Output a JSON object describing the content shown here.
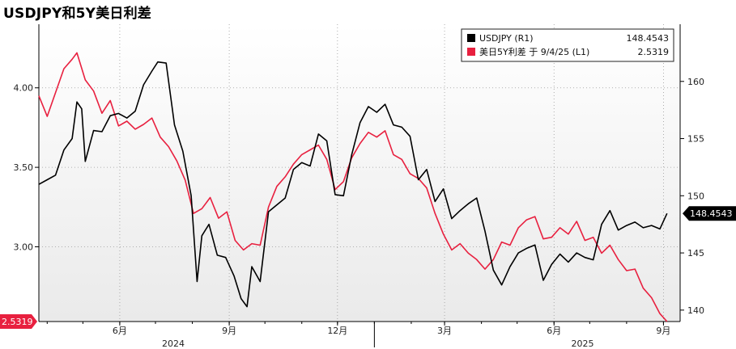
{
  "title": "USDJPY和5Y美日利差",
  "chart_data": {
    "type": "line",
    "title": "USDJPY和5Y美日利差",
    "x_axis": {
      "month_ticks": [
        {
          "label": "6月",
          "date": "2024-06-01"
        },
        {
          "label": "9月",
          "date": "2024-09-01"
        },
        {
          "label": "12月",
          "date": "2024-12-01"
        },
        {
          "label": "3月",
          "date": "2025-03-01"
        },
        {
          "label": "6月",
          "date": "2025-06-01"
        },
        {
          "label": "9月",
          "date": "2025-09-01"
        }
      ],
      "year_labels": [
        {
          "label": "2024",
          "date": "2024-07-16"
        },
        {
          "label": "2025",
          "date": "2025-06-25"
        }
      ],
      "range": [
        "2024-03-25",
        "2025-09-15"
      ]
    },
    "left_axis": {
      "ticks": [
        3.0,
        3.5,
        4.0
      ],
      "tick_labels": [
        "3.00",
        "3.50",
        "4.00"
      ],
      "range": [
        2.53,
        4.4
      ]
    },
    "right_axis": {
      "ticks": [
        140,
        145,
        150,
        155,
        160
      ],
      "range": [
        139,
        165
      ]
    },
    "legend": {
      "position": "top-right",
      "entries": [
        {
          "label": "USDJPY (R1)",
          "value": "148.4543",
          "color": "#000000"
        },
        {
          "label": "美日5Y利差 于 9/4/25 (L1)",
          "value": "2.5319",
          "color": "#e8203f"
        }
      ]
    },
    "flags": {
      "right": "148.4543",
      "left": "2.5319"
    },
    "series": [
      {
        "name": "USDJPY (R1)",
        "axis": "right",
        "color": "#000000",
        "points": [
          [
            "2024-03-25",
            151.0
          ],
          [
            "2024-04-01",
            151.4
          ],
          [
            "2024-04-08",
            151.8
          ],
          [
            "2024-04-15",
            154.0
          ],
          [
            "2024-04-22",
            155.0
          ],
          [
            "2024-04-26",
            158.2
          ],
          [
            "2024-04-30",
            157.6
          ],
          [
            "2024-05-03",
            153.0
          ],
          [
            "2024-05-10",
            155.7
          ],
          [
            "2024-05-17",
            155.6
          ],
          [
            "2024-05-24",
            157.0
          ],
          [
            "2024-05-31",
            157.2
          ],
          [
            "2024-06-07",
            156.8
          ],
          [
            "2024-06-14",
            157.4
          ],
          [
            "2024-06-21",
            159.7
          ],
          [
            "2024-06-28",
            160.9
          ],
          [
            "2024-07-03",
            161.7
          ],
          [
            "2024-07-10",
            161.6
          ],
          [
            "2024-07-17",
            156.2
          ],
          [
            "2024-07-24",
            153.9
          ],
          [
            "2024-07-31",
            150.0
          ],
          [
            "2024-08-05",
            142.5
          ],
          [
            "2024-08-09",
            146.5
          ],
          [
            "2024-08-15",
            147.5
          ],
          [
            "2024-08-22",
            144.8
          ],
          [
            "2024-08-29",
            144.6
          ],
          [
            "2024-09-05",
            143.0
          ],
          [
            "2024-09-11",
            141.0
          ],
          [
            "2024-09-16",
            140.3
          ],
          [
            "2024-09-20",
            143.8
          ],
          [
            "2024-09-27",
            142.5
          ],
          [
            "2024-10-04",
            148.6
          ],
          [
            "2024-10-11",
            149.2
          ],
          [
            "2024-10-18",
            149.8
          ],
          [
            "2024-10-25",
            152.3
          ],
          [
            "2024-11-01",
            152.9
          ],
          [
            "2024-11-08",
            152.6
          ],
          [
            "2024-11-15",
            155.4
          ],
          [
            "2024-11-22",
            154.8
          ],
          [
            "2024-11-29",
            150.1
          ],
          [
            "2024-12-06",
            150.0
          ],
          [
            "2024-12-13",
            153.6
          ],
          [
            "2024-12-20",
            156.4
          ],
          [
            "2024-12-27",
            157.8
          ],
          [
            "2025-01-03",
            157.3
          ],
          [
            "2025-01-10",
            158.0
          ],
          [
            "2025-01-17",
            156.2
          ],
          [
            "2025-01-24",
            156.0
          ],
          [
            "2025-01-31",
            155.2
          ],
          [
            "2025-02-07",
            151.4
          ],
          [
            "2025-02-14",
            152.3
          ],
          [
            "2025-02-21",
            149.5
          ],
          [
            "2025-02-28",
            150.6
          ],
          [
            "2025-03-07",
            148.0
          ],
          [
            "2025-03-14",
            148.7
          ],
          [
            "2025-03-21",
            149.3
          ],
          [
            "2025-03-28",
            149.8
          ],
          [
            "2025-04-04",
            146.9
          ],
          [
            "2025-04-11",
            143.5
          ],
          [
            "2025-04-18",
            142.2
          ],
          [
            "2025-04-25",
            143.8
          ],
          [
            "2025-05-02",
            145.0
          ],
          [
            "2025-05-09",
            145.4
          ],
          [
            "2025-05-16",
            145.7
          ],
          [
            "2025-05-23",
            142.6
          ],
          [
            "2025-05-30",
            144.0
          ],
          [
            "2025-06-06",
            144.9
          ],
          [
            "2025-06-13",
            144.2
          ],
          [
            "2025-06-20",
            145.0
          ],
          [
            "2025-06-27",
            144.6
          ],
          [
            "2025-07-04",
            144.4
          ],
          [
            "2025-07-11",
            147.5
          ],
          [
            "2025-07-18",
            148.7
          ],
          [
            "2025-07-25",
            147.0
          ],
          [
            "2025-08-01",
            147.4
          ],
          [
            "2025-08-08",
            147.7
          ],
          [
            "2025-08-15",
            147.2
          ],
          [
            "2025-08-22",
            147.4
          ],
          [
            "2025-08-29",
            147.1
          ],
          [
            "2025-09-04",
            148.45
          ]
        ]
      },
      {
        "name": "美日5Y利差 于 9/4/25 (L1)",
        "axis": "left",
        "color": "#e8203f",
        "points": [
          [
            "2024-03-25",
            3.95
          ],
          [
            "2024-04-01",
            3.82
          ],
          [
            "2024-04-08",
            3.97
          ],
          [
            "2024-04-15",
            4.12
          ],
          [
            "2024-04-22",
            4.18
          ],
          [
            "2024-04-26",
            4.22
          ],
          [
            "2024-05-03",
            4.05
          ],
          [
            "2024-05-10",
            3.98
          ],
          [
            "2024-05-17",
            3.84
          ],
          [
            "2024-05-24",
            3.92
          ],
          [
            "2024-05-31",
            3.76
          ],
          [
            "2024-06-07",
            3.79
          ],
          [
            "2024-06-14",
            3.74
          ],
          [
            "2024-06-21",
            3.77
          ],
          [
            "2024-06-28",
            3.81
          ],
          [
            "2024-07-05",
            3.69
          ],
          [
            "2024-07-12",
            3.63
          ],
          [
            "2024-07-19",
            3.54
          ],
          [
            "2024-07-26",
            3.42
          ],
          [
            "2024-08-02",
            3.21
          ],
          [
            "2024-08-09",
            3.24
          ],
          [
            "2024-08-16",
            3.31
          ],
          [
            "2024-08-23",
            3.18
          ],
          [
            "2024-08-30",
            3.22
          ],
          [
            "2024-09-06",
            3.04
          ],
          [
            "2024-09-13",
            2.98
          ],
          [
            "2024-09-20",
            3.02
          ],
          [
            "2024-09-27",
            3.01
          ],
          [
            "2024-10-04",
            3.25
          ],
          [
            "2024-10-11",
            3.38
          ],
          [
            "2024-10-18",
            3.44
          ],
          [
            "2024-10-25",
            3.52
          ],
          [
            "2024-11-01",
            3.58
          ],
          [
            "2024-11-08",
            3.61
          ],
          [
            "2024-11-15",
            3.64
          ],
          [
            "2024-11-22",
            3.55
          ],
          [
            "2024-11-29",
            3.36
          ],
          [
            "2024-12-06",
            3.41
          ],
          [
            "2024-12-13",
            3.56
          ],
          [
            "2024-12-20",
            3.65
          ],
          [
            "2024-12-27",
            3.72
          ],
          [
            "2025-01-03",
            3.69
          ],
          [
            "2025-01-10",
            3.73
          ],
          [
            "2025-01-17",
            3.58
          ],
          [
            "2025-01-24",
            3.55
          ],
          [
            "2025-01-31",
            3.46
          ],
          [
            "2025-02-07",
            3.43
          ],
          [
            "2025-02-14",
            3.37
          ],
          [
            "2025-02-21",
            3.21
          ],
          [
            "2025-02-28",
            3.08
          ],
          [
            "2025-03-07",
            2.98
          ],
          [
            "2025-03-14",
            3.02
          ],
          [
            "2025-03-21",
            2.96
          ],
          [
            "2025-03-28",
            2.92
          ],
          [
            "2025-04-04",
            2.86
          ],
          [
            "2025-04-11",
            2.92
          ],
          [
            "2025-04-18",
            3.03
          ],
          [
            "2025-04-25",
            3.01
          ],
          [
            "2025-05-02",
            3.12
          ],
          [
            "2025-05-09",
            3.17
          ],
          [
            "2025-05-16",
            3.19
          ],
          [
            "2025-05-23",
            3.05
          ],
          [
            "2025-05-30",
            3.06
          ],
          [
            "2025-06-06",
            3.12
          ],
          [
            "2025-06-13",
            3.08
          ],
          [
            "2025-06-20",
            3.16
          ],
          [
            "2025-06-27",
            3.04
          ],
          [
            "2025-07-04",
            3.06
          ],
          [
            "2025-07-11",
            2.96
          ],
          [
            "2025-07-18",
            3.01
          ],
          [
            "2025-07-25",
            2.92
          ],
          [
            "2025-08-01",
            2.85
          ],
          [
            "2025-08-08",
            2.86
          ],
          [
            "2025-08-15",
            2.74
          ],
          [
            "2025-08-22",
            2.68
          ],
          [
            "2025-08-29",
            2.58
          ],
          [
            "2025-09-04",
            2.53
          ]
        ]
      }
    ]
  }
}
